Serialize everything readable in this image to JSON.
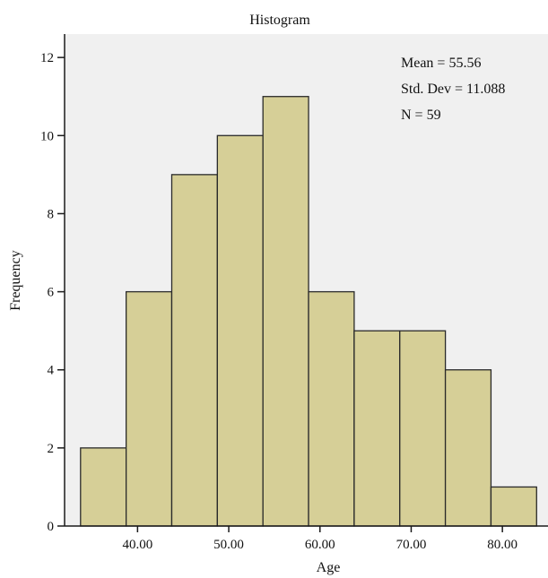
{
  "chart_data": {
    "type": "bar",
    "title": "Histogram",
    "xlabel": "Age",
    "ylabel": "Frequency",
    "bins": [
      {
        "x_start": 33.75,
        "x_end": 38.75,
        "count": 2
      },
      {
        "x_start": 38.75,
        "x_end": 43.75,
        "count": 6
      },
      {
        "x_start": 43.75,
        "x_end": 48.75,
        "count": 9
      },
      {
        "x_start": 48.75,
        "x_end": 53.75,
        "count": 10
      },
      {
        "x_start": 53.75,
        "x_end": 58.75,
        "count": 11
      },
      {
        "x_start": 58.75,
        "x_end": 63.75,
        "count": 6
      },
      {
        "x_start": 63.75,
        "x_end": 68.75,
        "count": 5
      },
      {
        "x_start": 68.75,
        "x_end": 73.75,
        "count": 5
      },
      {
        "x_start": 73.75,
        "x_end": 78.75,
        "count": 4
      },
      {
        "x_start": 78.75,
        "x_end": 83.75,
        "count": 1
      }
    ],
    "x_ticks": [
      "40.00",
      "50.00",
      "60.00",
      "70.00",
      "80.00"
    ],
    "x_tick_values": [
      40,
      50,
      60,
      70,
      80
    ],
    "y_ticks": [
      "0",
      "2",
      "4",
      "6",
      "8",
      "10",
      "12"
    ],
    "y_tick_values": [
      0,
      2,
      4,
      6,
      8,
      10,
      12
    ],
    "xlim": [
      32,
      85
    ],
    "ylim": [
      0,
      12.6
    ],
    "grid": false,
    "stats": {
      "mean": "Mean = 55.56",
      "std": "Std. Dev = 11.088",
      "n": "N = 59"
    },
    "colors": {
      "bar_fill": "#d6cf97",
      "bar_stroke": "#2a2a2a",
      "plot_bg": "#f0f0f0",
      "axis": "#1a1a1a"
    }
  }
}
